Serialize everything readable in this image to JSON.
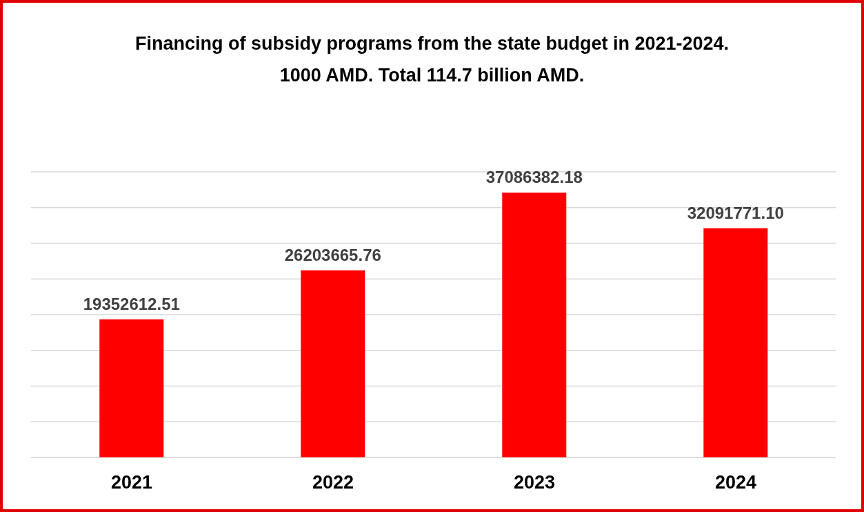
{
  "chart_data": {
    "type": "bar",
    "title": "Financing of subsidy programs from the state budget in 2021-2024.",
    "subtitle": "1000 AMD. Total 114.7 billion AMD.",
    "categories": [
      "2021",
      "2022",
      "2023",
      "2024"
    ],
    "values": [
      19352612.51,
      26203665.76,
      37086382.18,
      32091771.1
    ],
    "color": "#ff0000",
    "ylim": [
      0,
      40000000
    ],
    "yticks": [
      {
        "value": 0,
        "label": null
      },
      {
        "value": 5000000,
        "label": null
      },
      {
        "value": 10000000,
        "label": null
      },
      {
        "value": 15000000,
        "label": null
      },
      {
        "value": 20000000,
        "label": null
      },
      {
        "value": 25000000,
        "label": null
      },
      {
        "value": 30000000,
        "label": null
      },
      {
        "value": 35000000,
        "label": null
      },
      {
        "value": 40000000,
        "label": null
      }
    ],
    "value_labels": [
      "19352612.51",
      "26203665.76",
      "37086382.18",
      "32091771.10"
    ],
    "tick_labels": "x",
    "grid": "y",
    "legend": false
  }
}
